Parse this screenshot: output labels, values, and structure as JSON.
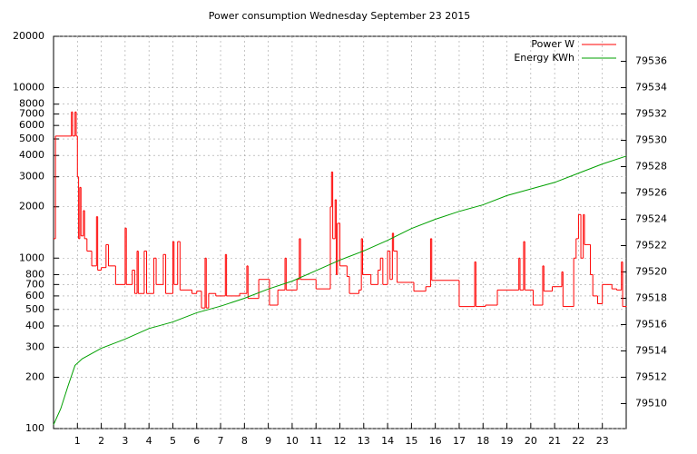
{
  "chart_data": {
    "type": "line",
    "title": "Power consumption Wednesday September 23 2015",
    "xlim": [
      0,
      24
    ],
    "xticks": [
      1,
      2,
      3,
      4,
      5,
      6,
      7,
      8,
      9,
      10,
      11,
      12,
      13,
      14,
      15,
      16,
      17,
      18,
      19,
      20,
      21,
      22,
      23
    ],
    "ylim": [
      100,
      20000
    ],
    "ylog": true,
    "yticks": [
      100,
      200,
      300,
      400,
      500,
      600,
      700,
      800,
      1000,
      2000,
      3000,
      4000,
      5000,
      6000,
      7000,
      8000,
      10000,
      20000
    ],
    "y2lim": [
      79508.1,
      79537.9
    ],
    "y2ticks": [
      79510,
      79512,
      79514,
      79516,
      79518,
      79520,
      79522,
      79524,
      79526,
      79528,
      79530,
      79532,
      79534,
      79536
    ],
    "grid": true,
    "legend": "top-right",
    "series": [
      {
        "name": "Power W",
        "color": "#ff0000",
        "style": "steps",
        "x": [
          0,
          0.08,
          0.75,
          0.8,
          0.9,
          0.95,
          1.0,
          1.05,
          1.1,
          1.15,
          1.25,
          1.3,
          1.4,
          1.6,
          1.8,
          1.85,
          2.0,
          2.2,
          2.3,
          2.6,
          3.0,
          3.05,
          3.3,
          3.4,
          3.5,
          3.55,
          3.8,
          3.9,
          4.2,
          4.3,
          4.6,
          4.7,
          5.0,
          5.05,
          5.2,
          5.3,
          5.8,
          6.0,
          6.2,
          6.35,
          6.4,
          6.5,
          6.8,
          7.2,
          7.25,
          7.8,
          8.1,
          8.15,
          8.6,
          9.0,
          9.05,
          9.4,
          9.7,
          9.75,
          10.2,
          10.3,
          10.35,
          11.0,
          11.6,
          11.65,
          11.7,
          11.8,
          11.85,
          11.9,
          12.0,
          12.3,
          12.4,
          12.8,
          12.9,
          12.95,
          13.3,
          13.6,
          13.7,
          13.8,
          14.0,
          14.1,
          14.2,
          14.25,
          14.4,
          15.1,
          15.6,
          15.8,
          15.85,
          17.0,
          17.65,
          17.7,
          18.1,
          18.6,
          19.5,
          19.55,
          19.7,
          19.75,
          20.1,
          20.5,
          20.55,
          20.9,
          21.3,
          21.35,
          21.8,
          21.9,
          22.0,
          22.1,
          22.2,
          22.25,
          22.5,
          22.6,
          22.8,
          23.0,
          23.4,
          23.6,
          23.8,
          23.85,
          24.0
        ],
        "values": [
          1300,
          5200,
          7200,
          5200,
          7200,
          5200,
          3000,
          1300,
          2600,
          1350,
          1900,
          1300,
          1100,
          900,
          1750,
          850,
          880,
          1200,
          900,
          700,
          1500,
          700,
          850,
          620,
          1100,
          620,
          1100,
          620,
          1000,
          700,
          1050,
          620,
          1250,
          700,
          1250,
          650,
          620,
          640,
          510,
          1000,
          510,
          620,
          600,
          1050,
          600,
          620,
          900,
          580,
          750,
          750,
          530,
          650,
          1000,
          650,
          750,
          1300,
          750,
          660,
          2000,
          3200,
          1300,
          2200,
          800,
          1600,
          900,
          780,
          620,
          650,
          1300,
          800,
          700,
          850,
          1000,
          700,
          1100,
          750,
          1400,
          1100,
          720,
          640,
          680,
          1300,
          740,
          520,
          950,
          520,
          530,
          650,
          1000,
          650,
          1250,
          650,
          530,
          900,
          640,
          680,
          830,
          520,
          1000,
          1300,
          1800,
          1000,
          1800,
          1200,
          800,
          600,
          540,
          700,
          660,
          650,
          950,
          520,
          520
        ]
      },
      {
        "name": "Energy KWh",
        "color": "#00a000",
        "axis": "y2",
        "x": [
          0,
          0.3,
          0.6,
          0.9,
          1.2,
          2,
          3,
          4,
          5,
          6,
          7,
          8,
          9,
          10,
          11,
          12,
          13,
          14,
          15,
          16,
          17,
          18,
          19,
          20,
          21,
          22,
          23,
          24
        ],
        "values": [
          79508.4,
          79509.6,
          79511.3,
          79512.9,
          79513.4,
          79514.2,
          79514.9,
          79515.7,
          79516.2,
          79516.9,
          79517.4,
          79518.0,
          79518.7,
          79519.3,
          79520.1,
          79520.9,
          79521.6,
          79522.4,
          79523.3,
          79524.0,
          79524.6,
          79525.1,
          79525.8,
          79526.3,
          79526.8,
          79527.5,
          79528.2,
          79528.8
        ]
      }
    ]
  }
}
